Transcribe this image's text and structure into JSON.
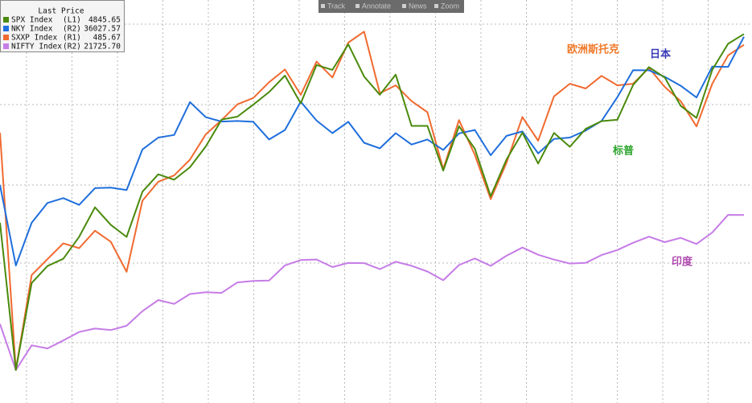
{
  "chart_data": {
    "type": "line",
    "legend_title": "Last Price",
    "toolbar": [
      "Track",
      "Annotate",
      "News",
      "Zoom"
    ],
    "grid": true,
    "series": [
      {
        "name": "SPX Index",
        "axis_label": "(L1)",
        "last_price": "4845.65",
        "color": "#4a8a0c",
        "ylim": [
          1980,
          5110
        ],
        "annotation": "标普",
        "annotation_color": "#2ea52e",
        "values": [
          3380,
          2237,
          2912,
          3044,
          3100,
          3271,
          3500,
          3363,
          3270,
          3621,
          3756,
          3714,
          3811,
          3973,
          4181,
          4204,
          4297,
          4395,
          4523,
          4307,
          4605,
          4567,
          4766,
          4516,
          4374,
          4530,
          4132,
          4132,
          3785,
          4130,
          3955,
          3586,
          3872,
          4080,
          3840,
          4077,
          3970,
          4109,
          4169,
          4180,
          4450,
          4589,
          4508,
          4288,
          4194,
          4568,
          4770,
          4845.65
        ]
      },
      {
        "name": "NKY Index",
        "axis_label": "(R2)",
        "last_price": "36027.57",
        "color": "#1f6fdc",
        "ylim": [
          4840,
          39160
        ],
        "annotation": "日本",
        "annotation_color": "#3a3ab8",
        "values": [
          23400,
          16550,
          20193,
          21878,
          22288,
          21710,
          23140,
          23185,
          22977,
          26433,
          27444,
          27663,
          30467,
          29178,
          28812,
          28860,
          28791,
          27283,
          28089,
          30500,
          28892,
          27821,
          28791,
          27001,
          26526,
          27821,
          26847,
          27279,
          26393,
          27801,
          28091,
          25937,
          27587,
          27968,
          26094,
          27327,
          27445,
          28041,
          28856,
          30887,
          33189,
          33172,
          32619,
          31857,
          30858,
          33486,
          33464,
          36027.57
        ]
      },
      {
        "name": "SXXP Index",
        "axis_label": "(R1)",
        "last_price": "485.67",
        "color": "#f06a30",
        "ylim": [
          259,
          514
        ],
        "annotation": "欧洲斯托克",
        "annotation_color": "#f07a2a",
        "values": [
          430,
          280,
          340,
          350,
          360,
          357,
          368,
          361,
          342,
          387,
          399,
          403,
          413,
          429,
          438,
          448,
          452,
          462,
          470,
          454,
          475,
          465,
          487,
          494,
          455,
          460,
          450,
          443,
          407,
          438,
          416,
          388,
          411,
          440,
          425,
          453,
          461,
          458,
          466,
          460,
          461,
          471,
          459,
          450,
          434,
          461,
          479,
          485.67
        ]
      },
      {
        "name": "NIFTY Index",
        "axis_label": "(R2)",
        "last_price": "21725.70",
        "color": "#c67ce6",
        "ylim": [
          4610,
          41280
        ],
        "annotation": "印度",
        "annotation_color": "#b04cb0",
        "values": [
          11800,
          7610,
          9860,
          9580,
          10300,
          11070,
          11390,
          11250,
          11640,
          12970,
          13980,
          13630,
          14530,
          14690,
          14630,
          15580,
          15720,
          15760,
          17130,
          17620,
          17670,
          16980,
          17350,
          17340,
          16790,
          17460,
          17100,
          16580,
          15780,
          17160,
          17760,
          17090,
          18010,
          18760,
          18100,
          17660,
          17300,
          17360,
          18070,
          18530,
          19190,
          19750,
          19250,
          19640,
          19080,
          20130,
          21730,
          21725.7
        ]
      }
    ]
  }
}
